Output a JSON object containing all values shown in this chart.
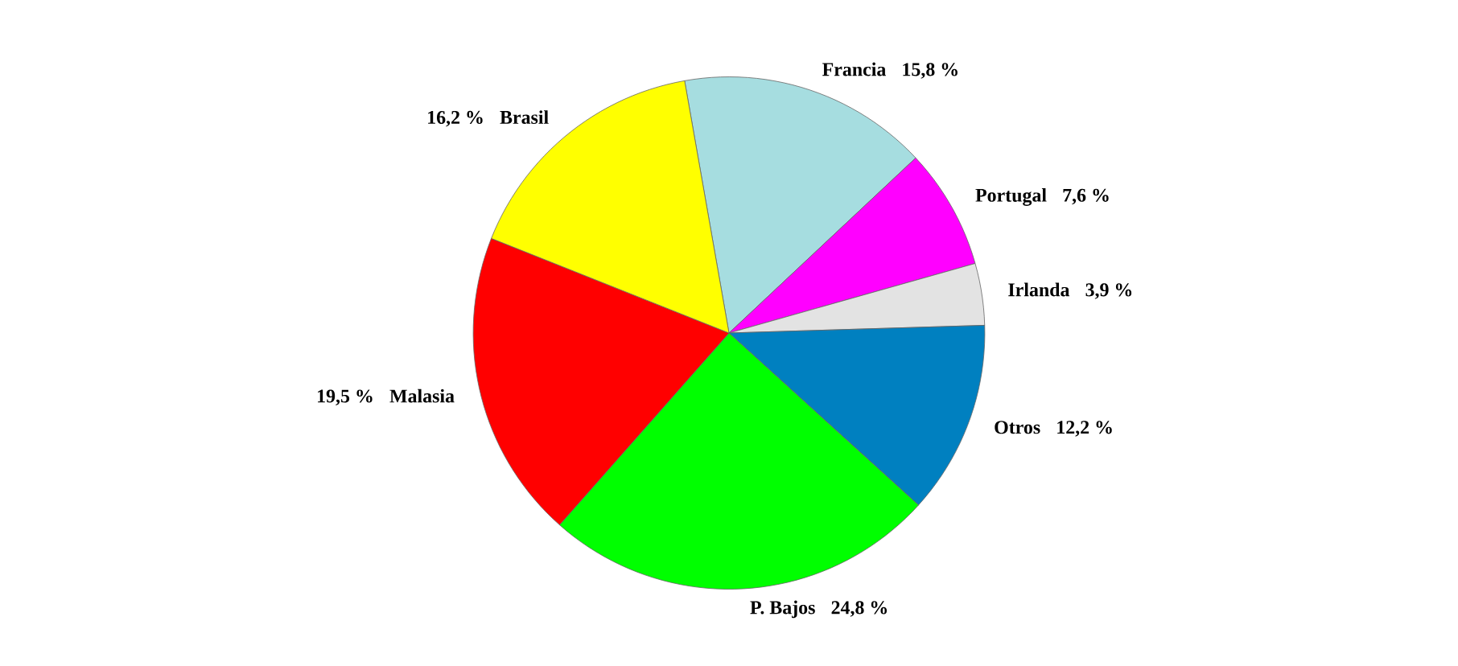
{
  "chart_data": {
    "type": "pie",
    "categories": [
      "Francia",
      "Portugal",
      "Irlanda",
      "Otros",
      "P. Bajos",
      "Malasia",
      "Brasil"
    ],
    "values": [
      15.8,
      7.6,
      3.9,
      12.2,
      24.8,
      19.5,
      16.2
    ],
    "value_labels": [
      "15,8 %",
      "7,6 %",
      "3,9 %",
      "12,2 %",
      "24,8 %",
      "19,5 %",
      "16,2 %"
    ],
    "colors": [
      "#a6dde0",
      "#ff00ff",
      "#e3e3e3",
      "#0080c0",
      "#00ff00",
      "#ff0000",
      "#ffff00"
    ]
  }
}
